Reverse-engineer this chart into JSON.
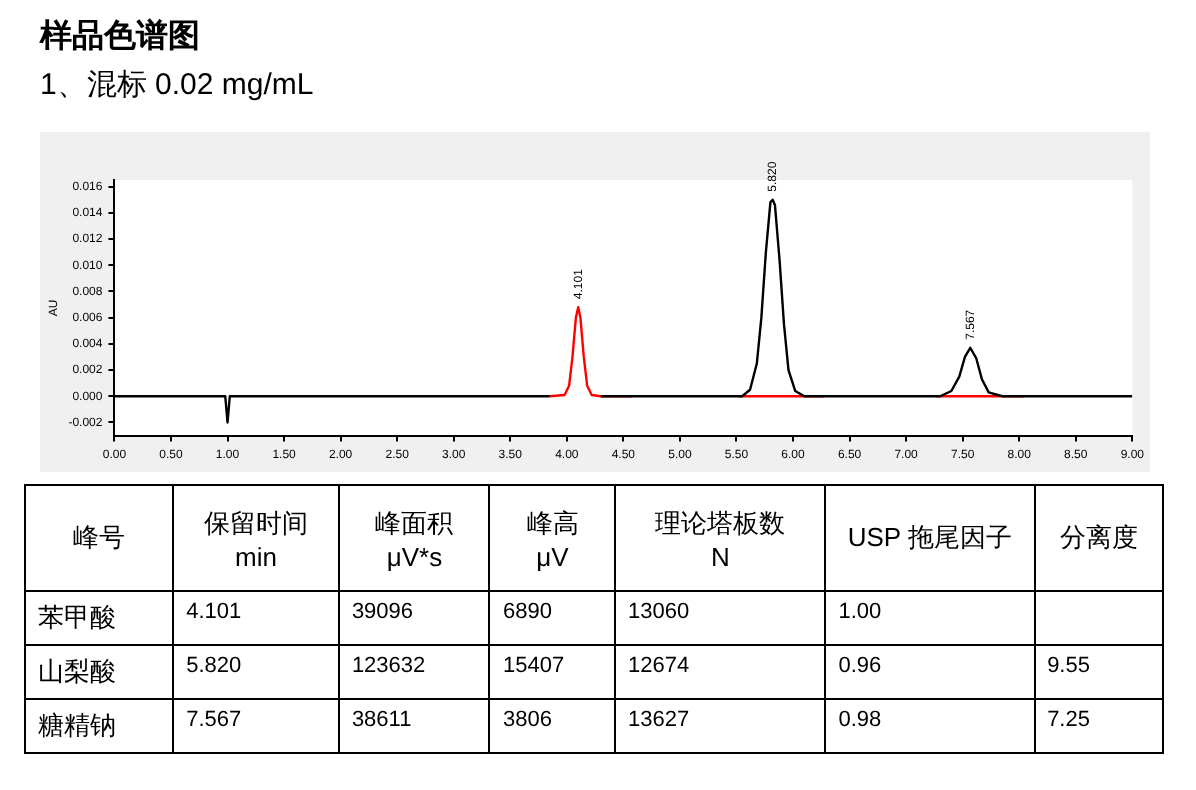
{
  "chart_data": [
    {
      "type": "line",
      "title": "样品色谱图",
      "subtitle": "1、混标 0.02 mg/mL",
      "ylabel": "AU",
      "legend": false,
      "grid": false,
      "marker": "none",
      "xlim": [
        0,
        9
      ],
      "xticks": [
        {
          "value": 0,
          "label": "0.00"
        },
        {
          "value": 0.5,
          "label": "0.50"
        },
        {
          "value": 1,
          "label": "1.00"
        },
        {
          "value": 1.5,
          "label": "1.50"
        },
        {
          "value": 2,
          "label": "2.00"
        },
        {
          "value": 2.5,
          "label": "2.50"
        },
        {
          "value": 3,
          "label": "3.00"
        },
        {
          "value": 3.5,
          "label": "3.50"
        },
        {
          "value": 4,
          "label": "4.00"
        },
        {
          "value": 4.5,
          "label": "4.50"
        },
        {
          "value": 5,
          "label": "5.00"
        },
        {
          "value": 5.5,
          "label": "5.50"
        },
        {
          "value": 6,
          "label": "6.00"
        },
        {
          "value": 6.5,
          "label": "6.50"
        },
        {
          "value": 7,
          "label": "7.00"
        },
        {
          "value": 7.5,
          "label": "7.50"
        },
        {
          "value": 8,
          "label": "8.00"
        },
        {
          "value": 8.5,
          "label": "8.50"
        },
        {
          "value": 9,
          "label": "9.00"
        }
      ],
      "ylim": [
        -0.003,
        0.0165
      ],
      "yticks": [
        {
          "value": -0.002,
          "label": "-0.002"
        },
        {
          "value": 0,
          "label": "0.000"
        },
        {
          "value": 0.002,
          "label": "0.002"
        },
        {
          "value": 0.004,
          "label": "0.004"
        },
        {
          "value": 0.006,
          "label": "0.006"
        },
        {
          "value": 0.008,
          "label": "0.008"
        },
        {
          "value": 0.01,
          "label": "0.010"
        },
        {
          "value": 0.012,
          "label": "0.012"
        },
        {
          "value": 0.014,
          "label": "0.014"
        },
        {
          "value": 0.016,
          "label": "0.016"
        }
      ],
      "series": [
        {
          "color": "#000000",
          "x": [
            0,
            0.98,
            1.0,
            1.02,
            3.85,
            4.1,
            4.3,
            5.55,
            5.62,
            5.68,
            5.72,
            5.76,
            5.8,
            5.82,
            5.84,
            5.88,
            5.92,
            5.96,
            6.02,
            6.1,
            7.3,
            7.4,
            7.47,
            7.52,
            7.567,
            7.62,
            7.67,
            7.73,
            7.85,
            9.0
          ],
          "values": [
            0,
            0,
            -0.002,
            0,
            0,
            null,
            0,
            0,
            0.0005,
            0.0025,
            0.006,
            0.011,
            0.0148,
            0.015,
            0.0146,
            0.0105,
            0.0055,
            0.002,
            0.0004,
            0,
            0,
            0.0004,
            0.0015,
            0.003,
            0.0037,
            0.0029,
            0.0013,
            0.0003,
            0,
            0
          ]
        },
        {
          "color": "#ff0000",
          "x": [
            3.85,
            3.98,
            4.02,
            4.05,
            4.08,
            4.101,
            4.12,
            4.15,
            4.18,
            4.22,
            4.3,
            4.58,
            5.0,
            5.52,
            6.27,
            7.0,
            7.26,
            8.04
          ],
          "values": [
            0,
            0.0001,
            0.0008,
            0.003,
            0.006,
            0.0068,
            0.006,
            0.003,
            0.0008,
            0.0001,
            0,
            0,
            null,
            0,
            0,
            null,
            0,
            0
          ]
        }
      ],
      "annotations": [
        {
          "text": "4.101",
          "x": 4.101,
          "y": 0.0068
        },
        {
          "text": "5.820",
          "x": 5.82,
          "y": 0.015
        },
        {
          "text": "7.567",
          "x": 7.567,
          "y": 0.0037
        }
      ]
    },
    {
      "type": "other",
      "categories": [
        "峰号",
        "保留时间\nmin",
        "峰面积\nμV*s",
        "峰高\nμV",
        "理论塔板数\nN",
        "USP 拖尾因子",
        "分离度"
      ],
      "annotations": [
        "苯甲酸",
        "4.101",
        "39096",
        "6890",
        "13060",
        "1.00",
        null,
        "山梨酸",
        "5.820",
        "123632",
        "15407",
        "12674",
        "0.96",
        "9.55",
        "糖精钠",
        "7.567",
        "38611",
        "3806",
        "13627",
        "0.98",
        "7.25"
      ]
    }
  ]
}
